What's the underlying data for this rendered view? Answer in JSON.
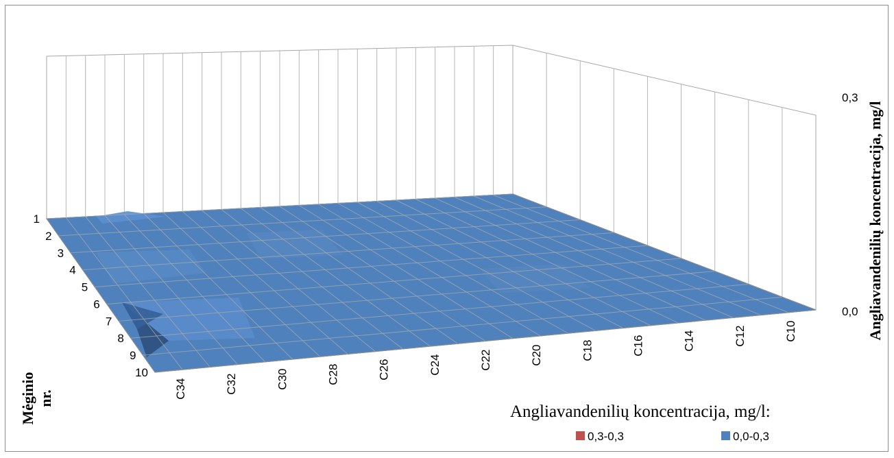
{
  "chart_data": {
    "type": "surface",
    "title": "",
    "x_axis": {
      "title_line1": "Mėginio",
      "title_line2": "nr.",
      "categories": [
        "1",
        "2",
        "3",
        "4",
        "5",
        "6",
        "7",
        "8",
        "9",
        "10"
      ]
    },
    "y_axis": {
      "title": "",
      "categories": [
        "C34",
        "C32",
        "C30",
        "C28",
        "C26",
        "C24",
        "C22",
        "C20",
        "C18",
        "C16",
        "C14",
        "C12",
        "C10"
      ]
    },
    "z_axis": {
      "title": "Angliavandenilių koncentracija, mg/l",
      "tick_labels": [
        "0,0",
        "0,3"
      ],
      "range": [
        0,
        0.3
      ]
    },
    "legend": {
      "title": "Angliavandenilių koncentracija, mg/l:",
      "position": "bottom-right",
      "items": [
        {
          "label": "0,3-0,3",
          "color": "#c0504d"
        },
        {
          "label": "0,0-0,3",
          "color": "#4f81bd"
        }
      ]
    },
    "series_color": "#4f81bd",
    "grid": true
  }
}
